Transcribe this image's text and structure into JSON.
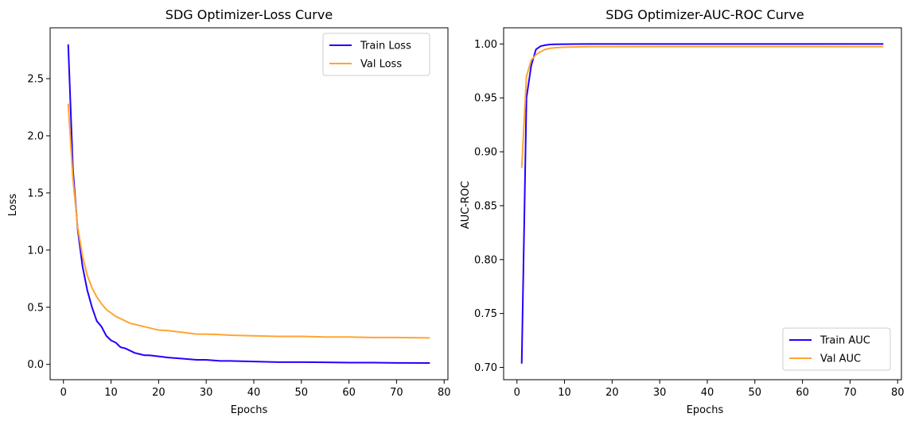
{
  "chart_data": [
    {
      "type": "line",
      "title": "SDG Optimizer-Loss Curve",
      "xlabel": "Epochs",
      "ylabel": "Loss",
      "xlim": [
        -2.8,
        80.8
      ],
      "ylim": [
        -0.134,
        2.945
      ],
      "xticks": [
        0,
        10,
        20,
        30,
        40,
        50,
        60,
        70,
        80
      ],
      "yticks": [
        0.0,
        0.5,
        1.0,
        1.5,
        2.0,
        2.5
      ],
      "ytick_labels": [
        "0.0",
        "0.5",
        "1.0",
        "1.5",
        "2.0",
        "2.5"
      ],
      "grid": false,
      "legend_position": "upper-right",
      "series": [
        {
          "name": "Train Loss",
          "color": "#2200ff",
          "points": [
            [
              1,
              2.8
            ],
            [
              2,
              1.7
            ],
            [
              3,
              1.18
            ],
            [
              4,
              0.86
            ],
            [
              5,
              0.65
            ],
            [
              6,
              0.5
            ],
            [
              7,
              0.38
            ],
            [
              8,
              0.33
            ],
            [
              9,
              0.25
            ],
            [
              10,
              0.21
            ],
            [
              11,
              0.19
            ],
            [
              12,
              0.15
            ],
            [
              13,
              0.14
            ],
            [
              14,
              0.12
            ],
            [
              15,
              0.1
            ],
            [
              16,
              0.09
            ],
            [
              17,
              0.08
            ],
            [
              18,
              0.08
            ],
            [
              20,
              0.07
            ],
            [
              22,
              0.06
            ],
            [
              25,
              0.05
            ],
            [
              28,
              0.04
            ],
            [
              30,
              0.04
            ],
            [
              33,
              0.03
            ],
            [
              35,
              0.03
            ],
            [
              40,
              0.025
            ],
            [
              45,
              0.02
            ],
            [
              50,
              0.02
            ],
            [
              55,
              0.018
            ],
            [
              60,
              0.015
            ],
            [
              65,
              0.015
            ],
            [
              70,
              0.013
            ],
            [
              77,
              0.012
            ]
          ]
        },
        {
          "name": "Val Loss",
          "color": "#ffa533",
          "points": [
            [
              1,
              2.28
            ],
            [
              2,
              1.62
            ],
            [
              3,
              1.2
            ],
            [
              4,
              0.95
            ],
            [
              5,
              0.78
            ],
            [
              6,
              0.67
            ],
            [
              7,
              0.59
            ],
            [
              8,
              0.53
            ],
            [
              9,
              0.48
            ],
            [
              10,
              0.45
            ],
            [
              11,
              0.42
            ],
            [
              12,
              0.4
            ],
            [
              13,
              0.38
            ],
            [
              14,
              0.36
            ],
            [
              15,
              0.35
            ],
            [
              16,
              0.34
            ],
            [
              18,
              0.32
            ],
            [
              20,
              0.3
            ],
            [
              22,
              0.295
            ],
            [
              25,
              0.28
            ],
            [
              28,
              0.265
            ],
            [
              30,
              0.265
            ],
            [
              33,
              0.26
            ],
            [
              35,
              0.255
            ],
            [
              40,
              0.25
            ],
            [
              45,
              0.245
            ],
            [
              50,
              0.245
            ],
            [
              55,
              0.24
            ],
            [
              60,
              0.24
            ],
            [
              65,
              0.235
            ],
            [
              70,
              0.235
            ],
            [
              77,
              0.232
            ]
          ]
        }
      ]
    },
    {
      "type": "line",
      "title": "SDG Optimizer-AUC-ROC Curve",
      "xlabel": "Epochs",
      "ylabel": "AUC-ROC",
      "xlim": [
        -2.8,
        80.8
      ],
      "ylim": [
        0.6886,
        1.015
      ],
      "xticks": [
        0,
        10,
        20,
        30,
        40,
        50,
        60,
        70,
        80
      ],
      "yticks": [
        0.7,
        0.75,
        0.8,
        0.85,
        0.9,
        0.95,
        1.0
      ],
      "ytick_labels": [
        "0.70",
        "0.75",
        "0.80",
        "0.85",
        "0.90",
        "0.95",
        "1.00"
      ],
      "grid": false,
      "legend_position": "lower-right",
      "series": [
        {
          "name": "Train AUC",
          "color": "#2200ff",
          "points": [
            [
              1,
              0.7035
            ],
            [
              2,
              0.95
            ],
            [
              3,
              0.98
            ],
            [
              4,
              0.995
            ],
            [
              5,
              0.998
            ],
            [
              6,
              0.999
            ],
            [
              7,
              0.9995
            ],
            [
              8,
              0.9997
            ],
            [
              10,
              0.9998
            ],
            [
              12,
              0.9999
            ],
            [
              15,
              0.99995
            ],
            [
              20,
              0.99997
            ],
            [
              30,
              0.99998
            ],
            [
              40,
              0.99998
            ],
            [
              50,
              0.99998
            ],
            [
              60,
              0.99998
            ],
            [
              70,
              0.99998
            ],
            [
              77,
              0.99998
            ]
          ]
        },
        {
          "name": "Val AUC",
          "color": "#ffa533",
          "points": [
            [
              1,
              0.885
            ],
            [
              2,
              0.97
            ],
            [
              3,
              0.985
            ],
            [
              4,
              0.99
            ],
            [
              5,
              0.993
            ],
            [
              6,
              0.995
            ],
            [
              7,
              0.996
            ],
            [
              8,
              0.9965
            ],
            [
              10,
              0.997
            ],
            [
              12,
              0.9972
            ],
            [
              15,
              0.9975
            ],
            [
              20,
              0.9975
            ],
            [
              30,
              0.9976
            ],
            [
              40,
              0.9976
            ],
            [
              50,
              0.9976
            ],
            [
              60,
              0.9976
            ],
            [
              70,
              0.9975
            ],
            [
              77,
              0.9975
            ]
          ]
        }
      ]
    }
  ]
}
